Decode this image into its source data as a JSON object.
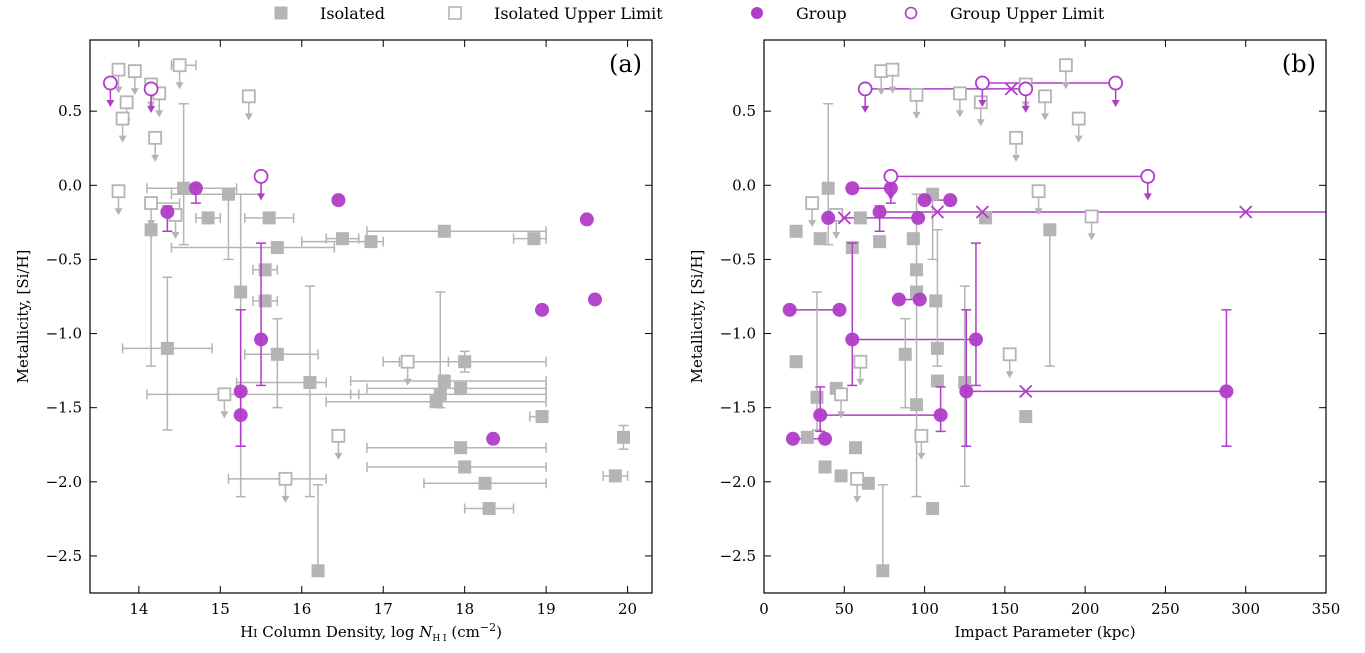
{
  "legend": {
    "placement": "top-center",
    "entries": [
      {
        "label": "Isolated",
        "marker": "square-filled",
        "color": "#b4b4b4"
      },
      {
        "label": "Isolated Upper Limit",
        "marker": "square-open",
        "color": "#b4b4b4"
      },
      {
        "label": "Group",
        "marker": "circle-filled",
        "color": "#b03cc8"
      },
      {
        "label": "Group Upper Limit",
        "marker": "circle-open",
        "color": "#b03cc8"
      }
    ]
  },
  "colors": {
    "isolated": "#b4b4b4",
    "group": "#b03cc8"
  },
  "chart_data": [
    {
      "type": "scatter",
      "panel_label": "(a)",
      "xlabel": "H I Column Density, log N_HI (cm^-2)",
      "xlabel_parts": {
        "pre": "H",
        "sc": "I",
        "mid": " Column Density, log ",
        "N": "N",
        "sub": "H I",
        "post": " (cm",
        "sup": "−2",
        "end": ")"
      },
      "ylabel": "Metallicity, [Si/H]",
      "xlim": [
        13.4,
        20.3
      ],
      "ylim": [
        -2.75,
        0.98
      ],
      "xticks": [
        14,
        15,
        16,
        17,
        18,
        19,
        20
      ],
      "xtick_labels": [
        "14",
        "15",
        "16",
        "17",
        "18",
        "19",
        "20"
      ],
      "yticks": [
        -2.5,
        -2.0,
        -1.5,
        -1.0,
        -0.5,
        0.0,
        0.5
      ],
      "ytick_labels": [
        "−2.5",
        "−2.0",
        "−1.5",
        "−1.0",
        "−0.5",
        "0.0",
        "0.5"
      ],
      "grid": false,
      "isolated": [
        {
          "x": 14.35,
          "y": -1.1,
          "ylo": -1.65,
          "yhi": -0.62,
          "xlo": 13.8,
          "xhi": 14.9
        },
        {
          "x": 14.15,
          "y": -0.3,
          "ylo": -1.22
        },
        {
          "x": 14.55,
          "y": -0.02,
          "ylo": -0.4,
          "yhi": 0.55,
          "xlo": 14.1,
          "xhi": 15.2
        },
        {
          "x": 14.85,
          "y": -0.22,
          "xlo": 14.7,
          "xhi": 15.0
        },
        {
          "x": 15.1,
          "y": -0.06,
          "ylo": -0.5,
          "xlo": 14.4,
          "xhi": 15.5
        },
        {
          "x": 15.25,
          "y": -0.72,
          "ylo": -2.1,
          "yhi": -0.06
        },
        {
          "x": 15.6,
          "y": -0.22,
          "xlo": 15.3,
          "xhi": 15.9
        },
        {
          "x": 15.55,
          "y": -0.57,
          "xlo": 15.4,
          "xhi": 15.7
        },
        {
          "x": 15.55,
          "y": -0.78,
          "xlo": 15.4,
          "xhi": 15.7
        },
        {
          "x": 15.7,
          "y": -0.42,
          "xlo": 14.4,
          "xhi": 16.4
        },
        {
          "x": 15.7,
          "y": -1.14,
          "ylo": -1.5,
          "yhi": -0.9,
          "xlo": 15.3,
          "xhi": 16.2
        },
        {
          "x": 16.1,
          "y": -1.33,
          "ylo": -2.1,
          "yhi": -0.68,
          "xlo": 15.2,
          "xhi": 16.3
        },
        {
          "x": 16.2,
          "y": -2.6,
          "ylo": -2.6,
          "yhi": -2.02
        },
        {
          "x": 16.5,
          "y": -0.36,
          "xlo": 16.3,
          "xhi": 16.7
        },
        {
          "x": 16.85,
          "y": -0.38,
          "xlo": 16.0,
          "xhi": 17.0
        },
        {
          "x": 17.65,
          "y": -1.46,
          "xlo": 16.3,
          "xhi": 19.0
        },
        {
          "x": 17.7,
          "y": -1.41,
          "ylo": -1.5,
          "yhi": -0.72,
          "xlo": 16.6,
          "xhi": 19.0
        },
        {
          "x": 17.75,
          "y": -1.32,
          "xlo": 16.6,
          "xhi": 19.0
        },
        {
          "x": 17.95,
          "y": -1.37,
          "xlo": 16.8,
          "xhi": 19.0
        },
        {
          "x": 17.75,
          "y": -0.31,
          "xlo": 16.8,
          "xhi": 19.0
        },
        {
          "x": 18.0,
          "y": -1.19,
          "ylo": -1.26,
          "yhi": -1.12,
          "xlo": 17.2,
          "xhi": 19.0
        },
        {
          "x": 17.95,
          "y": -1.77,
          "xlo": 16.8,
          "xhi": 19.0
        },
        {
          "x": 18.0,
          "y": -1.9,
          "xlo": 16.8,
          "xhi": 19.0
        },
        {
          "x": 18.25,
          "y": -2.01,
          "xlo": 17.5,
          "xhi": 19.0
        },
        {
          "x": 18.3,
          "y": -2.18,
          "xlo": 18.0,
          "xhi": 18.6
        },
        {
          "x": 18.85,
          "y": -0.36,
          "xlo": 18.6,
          "xhi": 19.0
        },
        {
          "x": 18.95,
          "y": -1.56,
          "xlo": 18.8,
          "xhi": 19.0
        },
        {
          "x": 19.85,
          "y": -1.96,
          "xlo": 19.7,
          "xhi": 20.0
        },
        {
          "x": 19.95,
          "y": -1.7,
          "ylo": -1.78,
          "yhi": -1.62
        }
      ],
      "isolated_upper": [
        {
          "x": 13.75,
          "y": 0.78
        },
        {
          "x": 13.95,
          "y": 0.77
        },
        {
          "x": 13.85,
          "y": 0.56
        },
        {
          "x": 13.8,
          "y": 0.45
        },
        {
          "x": 14.15,
          "y": 0.68
        },
        {
          "x": 14.25,
          "y": 0.62
        },
        {
          "x": 14.2,
          "y": 0.32
        },
        {
          "x": 14.5,
          "y": 0.81,
          "xlo": 14.4,
          "xhi": 14.7
        },
        {
          "x": 14.45,
          "y": -0.2
        },
        {
          "x": 14.15,
          "y": -0.12,
          "xlo": 14.1,
          "xhi": 14.5
        },
        {
          "x": 13.75,
          "y": -0.04
        },
        {
          "x": 15.35,
          "y": 0.6
        },
        {
          "x": 15.05,
          "y": -1.41,
          "xlo": 14.1,
          "xhi": 16.7
        },
        {
          "x": 15.8,
          "y": -1.98,
          "xlo": 15.1,
          "xhi": 16.3
        },
        {
          "x": 16.45,
          "y": -1.69
        },
        {
          "x": 17.3,
          "y": -1.19,
          "xlo": 17.0,
          "xhi": 17.8
        }
      ],
      "group": [
        {
          "x": 14.35,
          "y": -0.18,
          "ylo": -0.31,
          "yhi": -0.14
        },
        {
          "x": 14.7,
          "y": -0.02,
          "ylo": -0.12,
          "yhi": 0.0
        },
        {
          "x": 15.25,
          "y": -1.39,
          "ylo": -1.76,
          "yhi": -0.84
        },
        {
          "x": 15.25,
          "y": -1.55,
          "ylo": -1.76,
          "yhi": -1.39
        },
        {
          "x": 15.5,
          "y": -1.04,
          "ylo": -1.35,
          "yhi": -0.39
        },
        {
          "x": 16.45,
          "y": -0.1
        },
        {
          "x": 18.35,
          "y": -1.71
        },
        {
          "x": 18.95,
          "y": -0.84
        },
        {
          "x": 19.5,
          "y": -0.23
        },
        {
          "x": 19.6,
          "y": -0.77
        }
      ],
      "group_upper": [
        {
          "x": 13.65,
          "y": 0.69
        },
        {
          "x": 14.15,
          "y": 0.65
        },
        {
          "x": 15.5,
          "y": 0.06
        }
      ],
      "group_cross": []
    },
    {
      "type": "scatter",
      "panel_label": "(b)",
      "xlabel": "Impact Parameter (kpc)",
      "ylabel": "Metallicity, [Si/H]",
      "xlim": [
        0,
        350
      ],
      "ylim": [
        -2.75,
        0.98
      ],
      "xticks": [
        0,
        50,
        100,
        150,
        200,
        250,
        300,
        350
      ],
      "xtick_labels": [
        "0",
        "50",
        "100",
        "150",
        "200",
        "250",
        "300",
        "350"
      ],
      "yticks": [
        -2.5,
        -2.0,
        -1.5,
        -1.0,
        -0.5,
        0.0,
        0.5
      ],
      "ytick_labels": [
        "−2.5",
        "−2.0",
        "−1.5",
        "−1.0",
        "−0.5",
        "0.0",
        "0.5"
      ],
      "grid": false,
      "isolated": [
        {
          "x": 20,
          "y": -0.31
        },
        {
          "x": 20,
          "y": -1.19
        },
        {
          "x": 27,
          "y": -1.7
        },
        {
          "x": 33,
          "y": -1.43,
          "ylo": -1.65,
          "yhi": -0.72
        },
        {
          "x": 35,
          "y": -0.36
        },
        {
          "x": 38,
          "y": -1.9
        },
        {
          "x": 40,
          "y": -0.02,
          "ylo": -0.4,
          "yhi": 0.55
        },
        {
          "x": 45,
          "y": -1.37
        },
        {
          "x": 48,
          "y": -1.96
        },
        {
          "x": 55,
          "y": -0.42
        },
        {
          "x": 57,
          "y": -1.77
        },
        {
          "x": 60,
          "y": -0.22
        },
        {
          "x": 65,
          "y": -2.01
        },
        {
          "x": 72,
          "y": -0.38
        },
        {
          "x": 74,
          "y": -2.6,
          "ylo": -2.6,
          "yhi": -2.02
        },
        {
          "x": 88,
          "y": -1.14,
          "ylo": -1.5,
          "yhi": -0.9
        },
        {
          "x": 93,
          "y": -0.36
        },
        {
          "x": 95,
          "y": -0.57
        },
        {
          "x": 95,
          "y": -0.72,
          "ylo": -2.1,
          "yhi": -0.06
        },
        {
          "x": 95,
          "y": -1.48
        },
        {
          "x": 105,
          "y": -0.06,
          "ylo": -0.5
        },
        {
          "x": 107,
          "y": -0.78
        },
        {
          "x": 108,
          "y": -1.1,
          "ylo": -1.22,
          "yhi": -0.3
        },
        {
          "x": 108,
          "y": -1.32
        },
        {
          "x": 105,
          "y": -2.18
        },
        {
          "x": 125,
          "y": -1.33,
          "ylo": -2.03,
          "yhi": -0.68
        },
        {
          "x": 138,
          "y": -0.22
        },
        {
          "x": 163,
          "y": -1.56
        },
        {
          "x": 178,
          "y": -0.3,
          "ylo": -1.22
        }
      ],
      "isolated_upper": [
        {
          "x": 30,
          "y": -0.12
        },
        {
          "x": 45,
          "y": -0.2
        },
        {
          "x": 48,
          "y": -1.41
        },
        {
          "x": 58,
          "y": -1.98
        },
        {
          "x": 60,
          "y": -1.19
        },
        {
          "x": 73,
          "y": 0.77
        },
        {
          "x": 80,
          "y": 0.78
        },
        {
          "x": 95,
          "y": 0.61
        },
        {
          "x": 98,
          "y": -1.69
        },
        {
          "x": 122,
          "y": 0.62
        },
        {
          "x": 135,
          "y": 0.56
        },
        {
          "x": 153,
          "y": -1.14
        },
        {
          "x": 157,
          "y": 0.32
        },
        {
          "x": 163,
          "y": 0.68
        },
        {
          "x": 171,
          "y": -0.04
        },
        {
          "x": 175,
          "y": 0.6
        },
        {
          "x": 188,
          "y": 0.81
        },
        {
          "x": 196,
          "y": 0.45
        },
        {
          "x": 204,
          "y": -0.21
        }
      ],
      "group": [
        {
          "x": 16,
          "y": -0.84
        },
        {
          "x": 18,
          "y": -1.71
        },
        {
          "x": 35,
          "y": -1.55,
          "ylo": -1.66,
          "yhi": -1.36
        },
        {
          "x": 38,
          "y": -1.71
        },
        {
          "x": 40,
          "y": -0.22
        },
        {
          "x": 47,
          "y": -0.84
        },
        {
          "x": 55,
          "y": -0.02
        },
        {
          "x": 55,
          "y": -1.04,
          "ylo": -1.35,
          "yhi": -0.39
        },
        {
          "x": 72,
          "y": -0.18,
          "ylo": -0.31,
          "yhi": -0.14
        },
        {
          "x": 79,
          "y": -0.02,
          "ylo": -0.12,
          "yhi": 0.0
        },
        {
          "x": 84,
          "y": -0.77
        },
        {
          "x": 96,
          "y": -0.22
        },
        {
          "x": 97,
          "y": -0.77
        },
        {
          "x": 100,
          "y": -0.1
        },
        {
          "x": 110,
          "y": -1.55,
          "ylo": -1.66,
          "yhi": -1.36
        },
        {
          "x": 116,
          "y": -0.1
        },
        {
          "x": 126,
          "y": -1.39,
          "ylo": -1.76,
          "yhi": -0.84
        },
        {
          "x": 132,
          "y": -1.04,
          "ylo": -1.35,
          "yhi": -0.39
        },
        {
          "x": 288,
          "y": -1.39,
          "ylo": -1.76,
          "yhi": -0.84
        }
      ],
      "group_upper": [
        {
          "x": 63,
          "y": 0.65
        },
        {
          "x": 79,
          "y": 0.06
        },
        {
          "x": 136,
          "y": 0.69
        },
        {
          "x": 163,
          "y": 0.65
        },
        {
          "x": 219,
          "y": 0.69
        },
        {
          "x": 239,
          "y": 0.06
        }
      ],
      "group_cross": [
        {
          "x": 50,
          "y": -0.22
        },
        {
          "x": 108,
          "y": -0.18
        },
        {
          "x": 136,
          "y": -0.18
        },
        {
          "x": 154,
          "y": 0.65
        },
        {
          "x": 163,
          "y": -1.39
        },
        {
          "x": 300,
          "y": -0.18
        }
      ],
      "group_links": [
        {
          "y": 0.65,
          "x1": 63,
          "x2": 163
        },
        {
          "y": 0.69,
          "x1": 136,
          "x2": 219
        },
        {
          "y": 0.06,
          "x1": 79,
          "x2": 239
        },
        {
          "y": -0.02,
          "x1": 55,
          "x2": 79
        },
        {
          "y": -0.1,
          "x1": 100,
          "x2": 116
        },
        {
          "y": -0.18,
          "x1": 72,
          "x2": 350
        },
        {
          "y": -0.22,
          "x1": 40,
          "x2": 96
        },
        {
          "y": -0.77,
          "x1": 84,
          "x2": 97
        },
        {
          "y": -0.84,
          "x1": 16,
          "x2": 47
        },
        {
          "y": -1.04,
          "x1": 55,
          "x2": 132
        },
        {
          "y": -1.39,
          "x1": 126,
          "x2": 288
        },
        {
          "y": -1.55,
          "x1": 35,
          "x2": 110
        },
        {
          "y": -1.71,
          "x1": 18,
          "x2": 38
        }
      ]
    }
  ]
}
